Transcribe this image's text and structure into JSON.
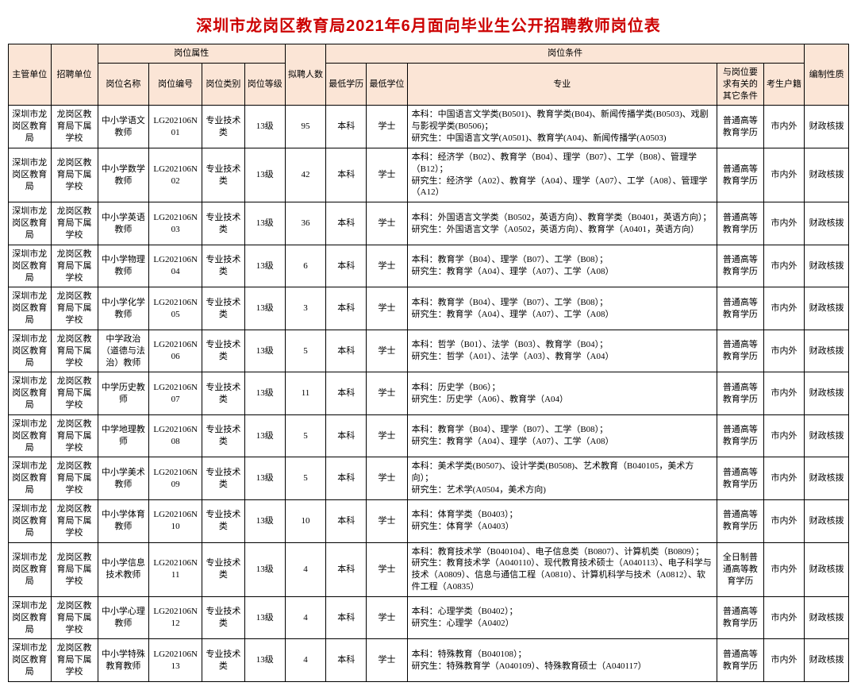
{
  "title": "深圳市龙岗区教育局2021年6月面向毕业生公开招聘教师岗位表",
  "headers": {
    "dept": "主管单位",
    "unit": "招聘单位",
    "attrGroup": "岗位属性",
    "condGroup": "岗位条件",
    "posName": "岗位名称",
    "posCode": "岗位编号",
    "posType": "岗位类别",
    "posGrade": "岗位等级",
    "count": "拟聘人数",
    "edu": "最低学历",
    "degree": "最低学位",
    "major": "专业",
    "other": "与岗位要求有关的其它条件",
    "region": "考生户籍",
    "fund": "编制性质"
  },
  "common": {
    "dept": "深圳市龙岗区教育局",
    "unit": "龙岗区教育局下属学校",
    "posType": "专业技术类",
    "posGrade": "13级",
    "edu": "本科",
    "degree": "学士",
    "other": "普通高等教育学历",
    "otherFull": "全日制普通高等教育学历",
    "region": "市内外",
    "fund": "财政核拨"
  },
  "rows": [
    {
      "posName": "中小学语文教师",
      "posCode": "LG202106N01",
      "count": "95",
      "major": "本科：中国语言文学类(B0501)、教育学类(B04)、新闻传播学类(B0503)、戏剧与影视学类(B0506)；\n研究生：中国语言文学(A0501)、教育学(A04)、新闻传播学(A0503)",
      "other": "普通高等教育学历"
    },
    {
      "posName": "中小学数学教师",
      "posCode": "LG202106N02",
      "count": "42",
      "major": "本科：经济学（B02）、教育学（B04）、理学（B07）、工学（B08）、管理学（B12）；\n研究生：经济学（A02）、教育学（A04）、理学（A07）、工学（A08）、管理学（A12）",
      "other": "普通高等教育学历"
    },
    {
      "posName": "中小学英语教师",
      "posCode": "LG202106N03",
      "count": "36",
      "major": "本科：外国语言文学类（B0502，英语方向）、教育学类（B0401，英语方向）；\n研究生：外国语言文学（A0502，英语方向）、教育学（A0401，英语方向）",
      "other": "普通高等教育学历"
    },
    {
      "posName": "中小学物理教师",
      "posCode": "LG202106N04",
      "count": "6",
      "major": "本科：教育学（B04）、理学（B07）、工学（B08）；\n研究生：教育学（A04）、理学（A07）、工学（A08）",
      "other": "普通高等教育学历"
    },
    {
      "posName": "中小学化学教师",
      "posCode": "LG202106N05",
      "count": "3",
      "major": "本科：教育学（B04）、理学（B07）、工学（B08）；\n研究生：教育学（A04）、理学（A07）、工学（A08）",
      "other": "普通高等教育学历"
    },
    {
      "posName": "中学政治（道德与法治）教师",
      "posCode": "LG202106N06",
      "count": "5",
      "major": "本科：哲学（B01）、法学（B03）、教育学（B04）；\n研究生：哲学（A01）、法学（A03）、教育学（A04）",
      "other": "普通高等教育学历"
    },
    {
      "posName": "中学历史教师",
      "posCode": "LG202106N07",
      "count": "11",
      "major": "本科：历史学（B06）；\n研究生：历史学（A06）、教育学（A04）",
      "other": "普通高等教育学历"
    },
    {
      "posName": "中学地理教师",
      "posCode": "LG202106N08",
      "count": "5",
      "major": "本科：教育学（B04）、理学（B07）、工学（B08）；\n研究生：教育学（A04）、理学（A07）、工学（A08）",
      "other": "普通高等教育学历"
    },
    {
      "posName": "中小学美术教师",
      "posCode": "LG202106N09",
      "count": "5",
      "major": "本科：美术学类(B0507)、设计学类(B0508)、艺术教育（B040105，美术方向）；\n研究生：艺术学(A0504，美术方向)",
      "other": "普通高等教育学历"
    },
    {
      "posName": "中小学体育教师",
      "posCode": "LG202106N10",
      "count": "10",
      "major": "本科：体育学类（B0403）；\n研究生：体育学（A0403）",
      "other": "普通高等教育学历"
    },
    {
      "posName": "中小学信息技术教师",
      "posCode": "LG202106N11",
      "count": "4",
      "major": "本科：教育技术学（B040104）、电子信息类（B0807）、计算机类（B0809）；\n研究生：教育技术学（A040110）、现代教育技术硕士（A040113）、电子科学与技术（A0809）、信息与通信工程（A0810）、计算机科学与技术（A0812）、软件工程（A0835）",
      "other": "全日制普通高等教育学历"
    },
    {
      "posName": "中小学心理教师",
      "posCode": "LG202106N12",
      "count": "4",
      "major": "本科：心理学类（B0402）；\n研究生：心理学（A0402）",
      "other": "普通高等教育学历"
    },
    {
      "posName": "中小学特殊教育教师",
      "posCode": "LG202106N13",
      "count": "4",
      "major": "本科：特殊教育（B040108）；\n研究生：特殊教育学（A040109）、特殊教育硕士（A040117）",
      "other": "普通高等教育学历"
    }
  ]
}
